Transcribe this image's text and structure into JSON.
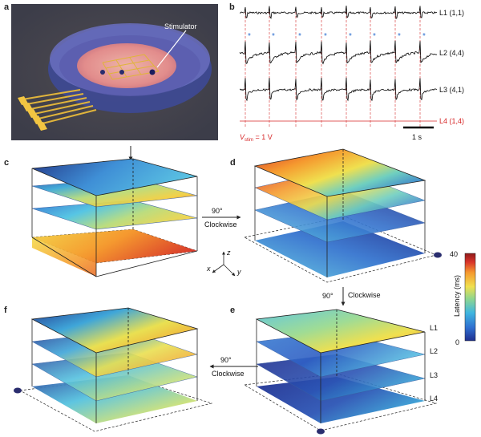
{
  "panels": {
    "a": "a",
    "b": "b",
    "c": "c",
    "d": "d",
    "e": "e",
    "f": "f"
  },
  "panel_a": {
    "stimulator_label": "Stimulator"
  },
  "panel_b": {
    "traces": [
      {
        "name": "L1 (1,1)",
        "color": "#000000"
      },
      {
        "name": "L2 (4,4)",
        "color": "#000000"
      },
      {
        "name": "L3 (4,1)",
        "color": "#000000"
      },
      {
        "name": "L4 (1,4)",
        "color": "#d62728"
      }
    ],
    "vstim_prefix": "V",
    "vstim_sub": "stim",
    "vstim_suffix": " = 1 V",
    "scale_bar_label": "1 s",
    "stim_marker": "*"
  },
  "rotations": {
    "c_to_d": {
      "angle": "90°",
      "direction": "Clockwise"
    },
    "d_to_e": {
      "angle": "90°",
      "direction": "Clockwise"
    },
    "e_to_f": {
      "angle": "90°",
      "direction": "Clockwise"
    }
  },
  "axes_indicator": {
    "x": "x",
    "y": "y",
    "z": "z"
  },
  "colorbar": {
    "max_label": "40",
    "min_label": "0",
    "title": "Latency (ms)",
    "colors": [
      "#1f2f8f",
      "#2f6fd0",
      "#3fb6e0",
      "#8fd68f",
      "#f0e04f",
      "#f59a2f",
      "#d9342b",
      "#8f1a1a"
    ]
  },
  "layer_labels": [
    "L1",
    "L2",
    "L3",
    "L4"
  ],
  "colors": {
    "lowLatency": "#273b8f",
    "highLatency": "#c62d27",
    "traceRed": "#d62728",
    "stimBlue": "#2f6fd0",
    "electrodeGold": "#e0b43b"
  }
}
